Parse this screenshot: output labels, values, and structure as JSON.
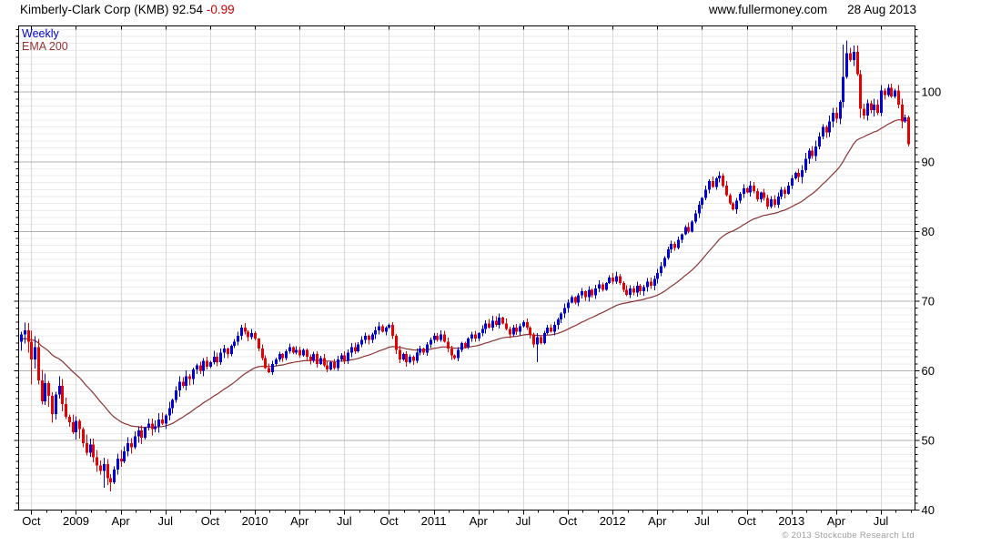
{
  "header": {
    "title": "Kimberly-Clark Corp (KMB) 92.54",
    "change": "-0.99",
    "website": "www.fullermoney.com",
    "date": "28 Aug 2013"
  },
  "legend": {
    "timeframe_label": "Weekly",
    "overlay_label": "EMA 200",
    "timeframe_color": "#0000cc",
    "overlay_color": "#993333"
  },
  "footer": {
    "copyright": "© 2013 Stockcube Research Ltd"
  },
  "chart_data": {
    "type": "candlestick",
    "title": "Kimberly-Clark Corp (KMB) weekly candlestick chart with EMA 200 overlay",
    "timeframe": "Weekly",
    "last_close": 92.54,
    "change": -0.99,
    "y_axis": {
      "min": 40,
      "max": 109.5,
      "labels": [
        40,
        50,
        60,
        70,
        80,
        90,
        100
      ],
      "minor_step": 1,
      "side": "right"
    },
    "x_axis": {
      "ticks": [
        {
          "label": "Oct",
          "week": 3
        },
        {
          "label": "2009",
          "week": 16
        },
        {
          "label": "Apr",
          "week": 29
        },
        {
          "label": "Jul",
          "week": 42
        },
        {
          "label": "Oct",
          "week": 55
        },
        {
          "label": "2010",
          "week": 68
        },
        {
          "label": "Apr",
          "week": 81
        },
        {
          "label": "Jul",
          "week": 94
        },
        {
          "label": "Oct",
          "week": 107
        },
        {
          "label": "2011",
          "week": 120
        },
        {
          "label": "Apr",
          "week": 133
        },
        {
          "label": "Jul",
          "week": 146
        },
        {
          "label": "Oct",
          "week": 159
        },
        {
          "label": "2012",
          "week": 172
        },
        {
          "label": "Apr",
          "week": 185
        },
        {
          "label": "Jul",
          "week": 198
        },
        {
          "label": "Oct",
          "week": 211
        },
        {
          "label": "2013",
          "week": 224
        },
        {
          "label": "Apr",
          "week": 237
        },
        {
          "label": "Jul",
          "week": 250
        }
      ],
      "minor_ticks": "monthly"
    },
    "first_open": 64.2,
    "series": {
      "name": "KMB weekly close",
      "closes": [
        65.2,
        65.8,
        64.2,
        61.6,
        63.4,
        58.6,
        55.6,
        58.2,
        56.4,
        53.8,
        56.6,
        57.8,
        55.2,
        53.4,
        52.6,
        51.2,
        52.8,
        51.6,
        49.6,
        48.2,
        49.4,
        47.6,
        46.4,
        45.6,
        46.6,
        44.6,
        44.0,
        45.8,
        47.4,
        47.0,
        48.4,
        49.6,
        49.0,
        50.6,
        51.4,
        50.4,
        51.8,
        52.4,
        51.6,
        52.0,
        53.0,
        52.4,
        53.6,
        54.6,
        55.8,
        57.2,
        58.4,
        57.8,
        59.2,
        58.8,
        60.2,
        60.8,
        60.0,
        61.4,
        60.6,
        61.2,
        62.0,
        61.2,
        62.6,
        63.2,
        62.4,
        63.6,
        64.2,
        65.0,
        66.2,
        65.6,
        64.8,
        65.4,
        64.6,
        63.2,
        61.8,
        60.4,
        59.8,
        61.0,
        61.6,
        62.4,
        61.8,
        62.8,
        63.4,
        62.6,
        63.0,
        62.2,
        63.0,
        62.0,
        61.4,
        62.4,
        61.0,
        61.8,
        60.8,
        60.2,
        61.2,
        60.4,
        61.6,
        62.2,
        61.4,
        62.6,
        63.4,
        62.8,
        63.8,
        64.4,
        65.0,
        64.4,
        65.2,
        65.8,
        66.4,
        65.6,
        66.2,
        66.6,
        65.0,
        63.0,
        61.6,
        62.4,
        61.2,
        62.0,
        61.4,
        62.6,
        63.2,
        62.6,
        63.8,
        64.4,
        65.0,
        64.4,
        65.2,
        64.2,
        63.2,
        62.2,
        61.8,
        63.0,
        64.0,
        63.4,
        64.6,
        65.2,
        64.6,
        65.4,
        66.0,
        66.8,
        66.2,
        67.2,
        66.6,
        67.6,
        66.8,
        66.0,
        65.2,
        66.2,
        65.6,
        66.4,
        67.0,
        66.2,
        65.2,
        63.8,
        64.8,
        64.0,
        65.4,
        66.2,
        65.6,
        66.6,
        67.4,
        68.2,
        69.0,
        69.8,
        70.6,
        69.8,
        70.8,
        71.4,
        70.6,
        71.6,
        70.8,
        71.8,
        72.4,
        71.6,
        72.6,
        73.4,
        72.8,
        73.6,
        72.6,
        71.6,
        70.9,
        71.8,
        71.2,
        72.2,
        71.4,
        72.0,
        72.8,
        72.2,
        73.2,
        74.0,
        75.0,
        76.2,
        77.4,
        78.2,
        77.6,
        78.8,
        79.6,
        80.6,
        80.0,
        81.4,
        82.6,
        83.8,
        84.8,
        86.0,
        87.2,
        86.4,
        87.6,
        88.0,
        86.6,
        85.2,
        84.0,
        83.2,
        84.4,
        85.4,
        86.2,
        85.6,
        86.6,
        85.8,
        84.6,
        85.6,
        84.8,
        83.6,
        84.6,
        83.8,
        85.0,
        86.0,
        85.4,
        86.6,
        87.6,
        88.4,
        87.8,
        88.8,
        90.4,
        91.6,
        90.8,
        92.2,
        93.6,
        95.0,
        94.2,
        95.8,
        97.0,
        96.2,
        98.6,
        102.2,
        105.6,
        104.6,
        105.8,
        102.6,
        97.6,
        96.6,
        98.4,
        97.4,
        98.2,
        97.0,
        100.2,
        99.6,
        100.6,
        99.4,
        100.2,
        98.2,
        95.8,
        96.4,
        92.54
      ]
    },
    "wick_overrides": {
      "3": {
        "low": 58.0
      },
      "24": {
        "low": 43.2
      },
      "25": {
        "low": 43.6
      },
      "150": {
        "low": 61.2
      },
      "239": {
        "high": 106.8
      },
      "240": {
        "high": 107.4
      },
      "244": {
        "low": 96.3
      },
      "258": {
        "low": 92.2,
        "high": 96.6
      }
    },
    "ema": {
      "label": "EMA 200",
      "color": "#8b3434"
    },
    "colors": {
      "up": "#0000d8",
      "down": "#e60000",
      "grid_major": "#b2b2b2",
      "grid_minor": "#ebebeb",
      "grid_vertical": "#d9d9d9",
      "axis": "#000000"
    }
  }
}
